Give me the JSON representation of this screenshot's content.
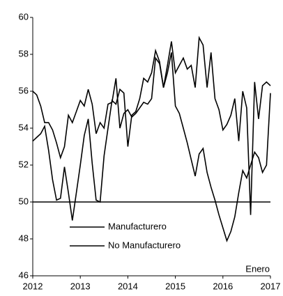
{
  "chart_data": {
    "type": "line",
    "x": [
      2012,
      2012.083,
      2012.167,
      2012.25,
      2012.333,
      2012.417,
      2012.5,
      2012.583,
      2012.667,
      2012.75,
      2012.833,
      2012.917,
      2013,
      2013.083,
      2013.167,
      2013.25,
      2013.333,
      2013.417,
      2013.5,
      2013.583,
      2013.667,
      2013.75,
      2013.833,
      2013.917,
      2014,
      2014.083,
      2014.167,
      2014.25,
      2014.333,
      2014.417,
      2014.5,
      2014.583,
      2014.667,
      2014.75,
      2014.833,
      2014.917,
      2015,
      2015.083,
      2015.167,
      2015.25,
      2015.333,
      2015.417,
      2015.5,
      2015.583,
      2015.667,
      2015.75,
      2015.833,
      2015.917,
      2016,
      2016.083,
      2016.167,
      2016.25,
      2016.333,
      2016.417,
      2016.5,
      2016.583,
      2016.667,
      2016.75,
      2016.833,
      2016.917,
      2017
    ],
    "series": [
      {
        "name": "Manufacturero",
        "color": "#000000",
        "values": [
          56.0,
          55.8,
          55.2,
          54.3,
          54.3,
          53.9,
          53.2,
          52.4,
          53.0,
          54.7,
          54.3,
          54.9,
          55.5,
          55.2,
          56.1,
          55.3,
          53.7,
          54.3,
          54.0,
          55.3,
          55.4,
          56.7,
          54.0,
          54.8,
          55.0,
          54.6,
          54.8,
          55.1,
          55.4,
          55.3,
          55.6,
          57.8,
          57.5,
          56.2,
          57.0,
          58.1,
          55.2,
          54.8,
          54.0,
          53.2,
          52.3,
          51.4,
          52.6,
          52.9,
          51.6,
          50.8,
          50.1,
          49.3,
          48.6,
          47.9,
          48.4,
          49.2,
          50.5,
          51.7,
          51.3,
          52.0,
          52.7,
          52.4,
          51.6,
          52.0,
          55.9
        ]
      },
      {
        "name": "No Manufacturero",
        "color": "#000000",
        "values": [
          53.3,
          53.5,
          53.7,
          54.1,
          52.8,
          51.2,
          50.1,
          50.2,
          51.9,
          50.5,
          49.0,
          50.5,
          52.0,
          53.6,
          54.5,
          52.1,
          50.1,
          50.0,
          52.5,
          54.0,
          55.5,
          55.3,
          56.1,
          55.9,
          53.0,
          54.7,
          54.9,
          55.6,
          56.7,
          56.5,
          57.0,
          58.2,
          57.6,
          56.2,
          57.4,
          58.7,
          57.0,
          57.4,
          57.8,
          57.2,
          57.4,
          56.2,
          58.9,
          58.5,
          56.2,
          58.1,
          55.6,
          55.0,
          53.9,
          54.2,
          54.7,
          55.6,
          53.3,
          56.0,
          55.1,
          49.3,
          56.5,
          54.5,
          56.3,
          56.5,
          56.3
        ]
      }
    ],
    "xlim": [
      2012,
      2017
    ],
    "xticks": [
      2012,
      2013,
      2014,
      2015,
      2016,
      2017
    ],
    "ylim": [
      46,
      60
    ],
    "yticks": [
      46,
      48,
      50,
      52,
      54,
      56,
      58,
      60
    ],
    "reference_line": 50,
    "annotation": "Enero",
    "grid": false
  }
}
